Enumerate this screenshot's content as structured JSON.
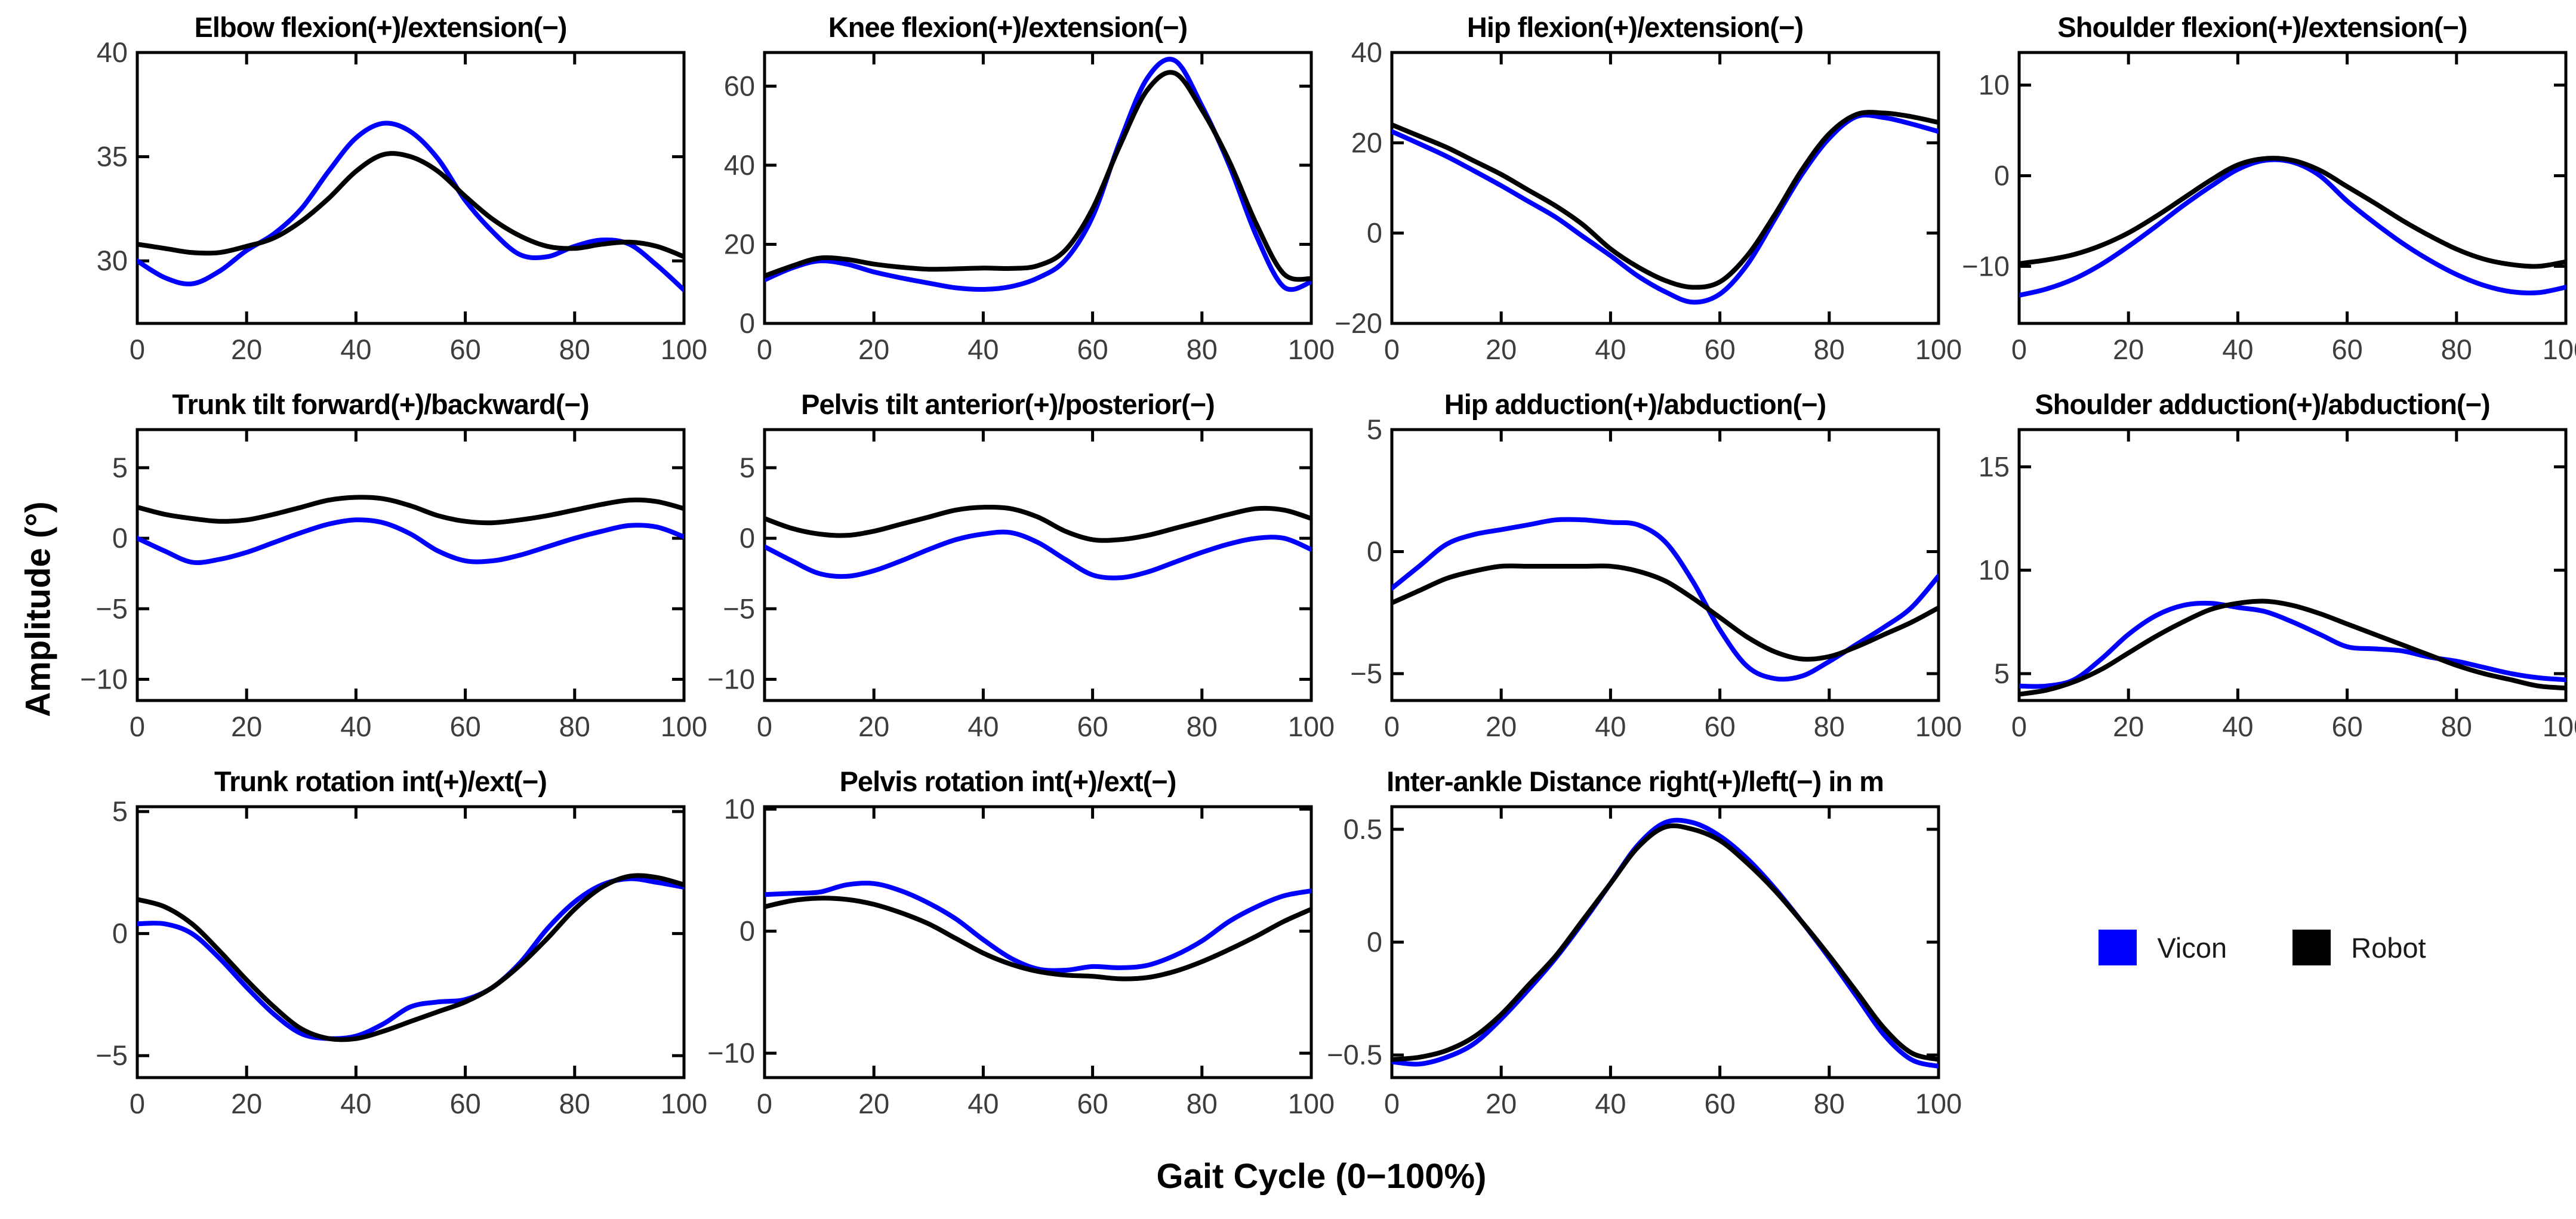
{
  "figure": {
    "ylabel": "Amplitude (°)",
    "xlabel": "Gait Cycle (0−100%)",
    "background": "#ffffff",
    "axis_color": "#000000",
    "tick_label_color": "#3d3d3d"
  },
  "legend": {
    "entries": [
      {
        "label": "Vicon",
        "color": "#0000ff"
      },
      {
        "label": "Robot",
        "color": "#000000"
      }
    ]
  },
  "x_axis": {
    "lim": [
      0,
      100
    ],
    "ticks": [
      0,
      20,
      40,
      60,
      80,
      100
    ],
    "x": [
      0,
      5,
      10,
      15,
      20,
      25,
      30,
      35,
      40,
      45,
      50,
      55,
      60,
      65,
      70,
      75,
      80,
      85,
      90,
      95,
      100
    ]
  },
  "chart_data": [
    {
      "type": "line",
      "title": "Elbow flexion(+)/extension(−)",
      "ylim": [
        27,
        40
      ],
      "yticks": [
        30,
        35,
        40
      ],
      "series": [
        {
          "name": "Vicon",
          "color": "#0000ff",
          "values": [
            30.0,
            29.2,
            28.9,
            29.5,
            30.5,
            31.3,
            32.5,
            34.3,
            35.9,
            36.6,
            36.2,
            34.9,
            32.9,
            31.4,
            30.3,
            30.2,
            30.7,
            31.0,
            30.8,
            29.8,
            28.6
          ]
        },
        {
          "name": "Robot",
          "color": "#000000",
          "values": [
            30.8,
            30.6,
            30.4,
            30.4,
            30.7,
            31.1,
            31.9,
            33.0,
            34.3,
            35.1,
            35.0,
            34.3,
            33.1,
            32.0,
            31.2,
            30.7,
            30.6,
            30.8,
            30.9,
            30.7,
            30.2
          ]
        }
      ]
    },
    {
      "type": "line",
      "title": "Knee flexion(+)/extension(−)",
      "ylim": [
        0,
        68.5
      ],
      "yticks": [
        0,
        20,
        40,
        60
      ],
      "series": [
        {
          "name": "Vicon",
          "color": "#0000ff",
          "values": [
            11.0,
            14.0,
            15.8,
            15.0,
            13.0,
            11.5,
            10.2,
            9.0,
            8.6,
            9.3,
            11.5,
            16.0,
            27.0,
            46.0,
            62.0,
            66.5,
            55.0,
            40.0,
            22.0,
            9.2,
            10.5
          ]
        },
        {
          "name": "Robot",
          "color": "#000000",
          "values": [
            12.0,
            14.5,
            16.5,
            16.2,
            15.0,
            14.2,
            13.7,
            13.8,
            14.0,
            13.9,
            14.6,
            18.5,
            29.0,
            45.0,
            59.0,
            63.3,
            54.0,
            41.0,
            25.0,
            12.5,
            11.3
          ]
        }
      ]
    },
    {
      "type": "line",
      "title": "Hip flexion(+)/extension(−)",
      "ylim": [
        -20,
        40
      ],
      "yticks": [
        -20,
        0,
        20,
        40
      ],
      "series": [
        {
          "name": "Vicon",
          "color": "#0000ff",
          "values": [
            22.5,
            19.8,
            17.0,
            13.8,
            10.5,
            7.0,
            3.5,
            -0.8,
            -5.0,
            -9.5,
            -13.0,
            -15.3,
            -13.5,
            -7.0,
            3.0,
            13.0,
            21.0,
            25.8,
            25.6,
            24.2,
            22.5
          ]
        },
        {
          "name": "Robot",
          "color": "#000000",
          "values": [
            24.0,
            21.5,
            19.0,
            16.0,
            13.0,
            9.5,
            6.0,
            1.8,
            -3.5,
            -7.5,
            -10.5,
            -12.0,
            -10.8,
            -5.0,
            4.0,
            14.0,
            22.0,
            26.3,
            26.6,
            25.8,
            24.5
          ]
        }
      ]
    },
    {
      "type": "line",
      "title": "Shoulder flexion(+)/extension(−)",
      "ylim": [
        -16.3,
        13.6
      ],
      "yticks": [
        -10,
        0,
        10
      ],
      "series": [
        {
          "name": "Vicon",
          "color": "#0000ff",
          "values": [
            -13.2,
            -12.5,
            -11.4,
            -9.8,
            -7.8,
            -5.6,
            -3.3,
            -1.2,
            0.7,
            1.7,
            1.5,
            0.0,
            -2.8,
            -5.2,
            -7.4,
            -9.3,
            -10.9,
            -12.1,
            -12.8,
            -12.9,
            -12.3
          ]
        },
        {
          "name": "Robot",
          "color": "#000000",
          "values": [
            -9.7,
            -9.3,
            -8.7,
            -7.7,
            -6.3,
            -4.5,
            -2.5,
            -0.5,
            1.2,
            1.9,
            1.7,
            0.6,
            -1.2,
            -3.0,
            -4.9,
            -6.6,
            -8.1,
            -9.2,
            -9.8,
            -10.0,
            -9.5
          ]
        }
      ]
    },
    {
      "type": "line",
      "title": "Trunk tilt forward(+)/backward(−)",
      "ylim": [
        -11.5,
        7.7
      ],
      "yticks": [
        -10,
        -5,
        0,
        5
      ],
      "series": [
        {
          "name": "Vicon",
          "color": "#0000ff",
          "values": [
            0.0,
            -0.9,
            -1.7,
            -1.5,
            -1.0,
            -0.3,
            0.4,
            1.0,
            1.3,
            1.1,
            0.3,
            -0.9,
            -1.6,
            -1.6,
            -1.2,
            -0.6,
            0.0,
            0.5,
            0.9,
            0.8,
            0.1
          ]
        },
        {
          "name": "Robot",
          "color": "#000000",
          "values": [
            2.2,
            1.7,
            1.4,
            1.2,
            1.3,
            1.7,
            2.2,
            2.7,
            2.9,
            2.8,
            2.3,
            1.6,
            1.2,
            1.1,
            1.3,
            1.6,
            2.0,
            2.4,
            2.7,
            2.6,
            2.1
          ]
        }
      ]
    },
    {
      "type": "line",
      "title": "Pelvis tilt anterior(+)/posterior(−)",
      "ylim": [
        -11.5,
        7.7
      ],
      "yticks": [
        -10,
        -5,
        0,
        5
      ],
      "series": [
        {
          "name": "Vicon",
          "color": "#0000ff",
          "values": [
            -0.6,
            -1.6,
            -2.5,
            -2.7,
            -2.3,
            -1.6,
            -0.8,
            -0.1,
            0.3,
            0.4,
            -0.3,
            -1.5,
            -2.6,
            -2.8,
            -2.4,
            -1.7,
            -1.0,
            -0.4,
            0.0,
            0.0,
            -0.8
          ]
        },
        {
          "name": "Robot",
          "color": "#000000",
          "values": [
            1.4,
            0.7,
            0.3,
            0.2,
            0.5,
            1.0,
            1.5,
            2.0,
            2.2,
            2.1,
            1.5,
            0.5,
            -0.1,
            -0.1,
            0.2,
            0.7,
            1.2,
            1.7,
            2.1,
            2.0,
            1.4
          ]
        }
      ]
    },
    {
      "type": "line",
      "title": "Hip adduction(+)/abduction(−)",
      "ylim": [
        -6.1,
        5
      ],
      "yticks": [
        -5,
        0,
        5
      ],
      "series": [
        {
          "name": "Vicon",
          "color": "#0000ff",
          "values": [
            -1.5,
            -0.6,
            0.3,
            0.7,
            0.9,
            1.1,
            1.3,
            1.3,
            1.2,
            1.1,
            0.4,
            -1.2,
            -3.2,
            -4.7,
            -5.2,
            -5.1,
            -4.5,
            -3.8,
            -3.1,
            -2.3,
            -1.0
          ]
        },
        {
          "name": "Robot",
          "color": "#000000",
          "values": [
            -2.1,
            -1.6,
            -1.1,
            -0.8,
            -0.6,
            -0.6,
            -0.6,
            -0.6,
            -0.6,
            -0.8,
            -1.2,
            -1.9,
            -2.7,
            -3.5,
            -4.1,
            -4.4,
            -4.3,
            -3.9,
            -3.4,
            -2.9,
            -2.3
          ]
        }
      ]
    },
    {
      "type": "line",
      "title": "Shoulder adduction(+)/abduction(−)",
      "ylim": [
        3.7,
        16.8
      ],
      "yticks": [
        5,
        10,
        15
      ],
      "series": [
        {
          "name": "Vicon",
          "color": "#0000ff",
          "values": [
            4.4,
            4.4,
            4.7,
            5.7,
            6.9,
            7.8,
            8.3,
            8.4,
            8.2,
            8.0,
            7.5,
            6.9,
            6.3,
            6.2,
            6.1,
            5.8,
            5.6,
            5.3,
            5.0,
            4.8,
            4.7
          ]
        },
        {
          "name": "Robot",
          "color": "#000000",
          "values": [
            4.0,
            4.2,
            4.6,
            5.2,
            6.0,
            6.8,
            7.5,
            8.1,
            8.4,
            8.5,
            8.3,
            7.9,
            7.4,
            6.9,
            6.4,
            5.9,
            5.4,
            5.0,
            4.7,
            4.4,
            4.3
          ]
        }
      ]
    },
    {
      "type": "line",
      "title": "Trunk rotation int(+)/ext(−)",
      "ylim": [
        -5.9,
        5.2
      ],
      "yticks": [
        -5,
        0,
        5
      ],
      "series": [
        {
          "name": "Vicon",
          "color": "#0000ff",
          "values": [
            0.4,
            0.4,
            0.0,
            -1.0,
            -2.2,
            -3.3,
            -4.1,
            -4.3,
            -4.2,
            -3.7,
            -3.0,
            -2.8,
            -2.7,
            -2.2,
            -1.2,
            0.2,
            1.3,
            2.0,
            2.25,
            2.1,
            1.9
          ]
        },
        {
          "name": "Robot",
          "color": "#000000",
          "values": [
            1.4,
            1.1,
            0.4,
            -0.7,
            -1.9,
            -3.0,
            -3.9,
            -4.3,
            -4.3,
            -4.0,
            -3.6,
            -3.2,
            -2.8,
            -2.2,
            -1.3,
            -0.2,
            1.0,
            1.9,
            2.35,
            2.3,
            2.0
          ]
        }
      ]
    },
    {
      "type": "line",
      "title": "Pelvis rotation int(+)/ext(−)",
      "ylim": [
        -12,
        10.2
      ],
      "yticks": [
        -10,
        0,
        10
      ],
      "series": [
        {
          "name": "Vicon",
          "color": "#0000ff",
          "values": [
            3.0,
            3.1,
            3.2,
            3.8,
            3.9,
            3.3,
            2.3,
            1.0,
            -0.7,
            -2.2,
            -3.1,
            -3.2,
            -2.9,
            -3.0,
            -2.8,
            -2.0,
            -0.8,
            0.8,
            2.0,
            2.9,
            3.3
          ]
        },
        {
          "name": "Robot",
          "color": "#000000",
          "values": [
            2.0,
            2.5,
            2.7,
            2.6,
            2.2,
            1.5,
            0.6,
            -0.6,
            -1.8,
            -2.7,
            -3.3,
            -3.6,
            -3.7,
            -3.9,
            -3.8,
            -3.3,
            -2.5,
            -1.5,
            -0.4,
            0.8,
            1.8
          ]
        }
      ]
    },
    {
      "type": "line",
      "title": "Inter-ankle Distance right(+)/left(−) in m",
      "ylim": [
        -0.6,
        0.6
      ],
      "yticks": [
        -0.5,
        0,
        0.5
      ],
      "series": [
        {
          "name": "Vicon",
          "color": "#0000ff",
          "values": [
            -0.53,
            -0.54,
            -0.51,
            -0.45,
            -0.34,
            -0.21,
            -0.07,
            0.09,
            0.26,
            0.43,
            0.53,
            0.53,
            0.47,
            0.37,
            0.24,
            0.09,
            -0.07,
            -0.24,
            -0.41,
            -0.52,
            -0.55
          ]
        },
        {
          "name": "Robot",
          "color": "#000000",
          "values": [
            -0.52,
            -0.51,
            -0.48,
            -0.42,
            -0.32,
            -0.19,
            -0.06,
            0.1,
            0.26,
            0.42,
            0.51,
            0.5,
            0.45,
            0.35,
            0.23,
            0.09,
            -0.06,
            -0.22,
            -0.38,
            -0.49,
            -0.52
          ]
        }
      ]
    }
  ]
}
